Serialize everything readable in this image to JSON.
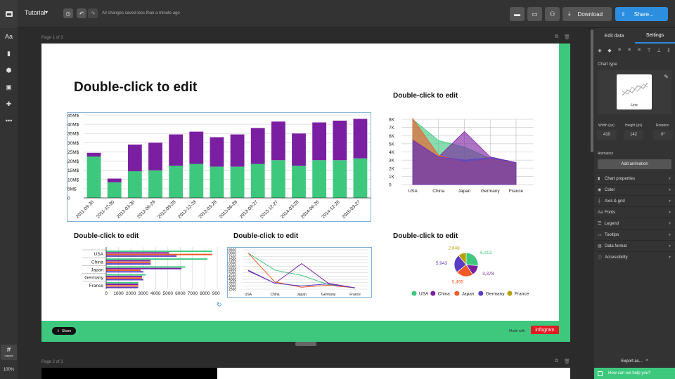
{
  "header": {
    "project_title": "Tutorial",
    "saved_status": "All changes saved less than a minute ago",
    "download_label": "Download",
    "share_label": "Share...",
    "share_color": "#2d8ee0"
  },
  "left_toolbar": {
    "items": [
      {
        "name": "text-tool-icon",
        "glyph": "Aa"
      },
      {
        "name": "chart-tool-icon",
        "glyph": "▮"
      },
      {
        "name": "map-tool-icon",
        "glyph": "⬢"
      },
      {
        "name": "image-tool-icon",
        "glyph": "▣"
      },
      {
        "name": "shapes-tool-icon",
        "glyph": "✚"
      },
      {
        "name": "more-tool-icon",
        "glyph": "•••"
      }
    ],
    "layout_label": "Layout",
    "zoom": "100%"
  },
  "canvas": {
    "page1_label": "Page 1 of 3",
    "page2_label": "Page 2 of 3",
    "main_title": "Double-click to edit",
    "area_title": "Double-click to edit",
    "hbar_title": "Double-click to edit",
    "line_title": "Double-click to edit",
    "pie_title": "Double-click to edit",
    "footer_share": "Share",
    "made_with": "Made with",
    "brand": "infogram",
    "accent_green": "#3ec87e"
  },
  "right_panel": {
    "tabs": [
      "Edit data",
      "Settings"
    ],
    "active_tab": "Settings",
    "chart_type_label": "Chart type",
    "chart_type_value": "Line",
    "width_label": "Width (px)",
    "width_value": "410",
    "height_label": "Height (px)",
    "height_value": "142",
    "rotation_label": "Rotation",
    "rotation_value": "0°",
    "animation_label": "Animation",
    "add_animation_label": "Add animation",
    "sections": [
      {
        "icon": "chart-properties-icon",
        "glyph": "▮",
        "label": "Chart properties"
      },
      {
        "icon": "color-icon",
        "glyph": "◉",
        "label": "Color"
      },
      {
        "icon": "axis-grid-icon",
        "glyph": "┼",
        "label": "Axis & grid"
      },
      {
        "icon": "fonts-icon",
        "glyph": "Aa",
        "label": "Fonts"
      },
      {
        "icon": "legend-icon",
        "glyph": "☰",
        "label": "Legend"
      },
      {
        "icon": "tooltips-icon",
        "glyph": "▭",
        "label": "Tooltips"
      },
      {
        "icon": "data-format-icon",
        "glyph": "▤",
        "label": "Data format"
      },
      {
        "icon": "accessibility-icon",
        "glyph": "ⓘ",
        "label": "Accessibility"
      }
    ],
    "export_label": "Export as...",
    "help_label": "How can we help you?"
  },
  "chart_data": [
    {
      "type": "bar",
      "title": "",
      "categories": [
        "2011-09-30",
        "2011-12-30",
        "2012-03-30",
        "2012-06-29",
        "2012-09-28",
        "2012-12-28",
        "2013-03-29",
        "2013-06-28",
        "2013-09-27",
        "2013-12-27",
        "2014-03-28",
        "2014-06-26",
        "2014-12-26",
        "2015-03-27"
      ],
      "series": [
        {
          "color": "#3ec87e",
          "values": [
            22.5,
            8.5,
            14.5,
            15,
            17.5,
            18.5,
            17,
            17,
            18.5,
            20.5,
            17.5,
            20.5,
            20.5,
            21.5
          ]
        },
        {
          "color": "#7b1fa2",
          "values": [
            2,
            2,
            14.5,
            15,
            17,
            17.5,
            16,
            17.5,
            19.5,
            21,
            17.5,
            20.5,
            21.5,
            21.5
          ]
        }
      ],
      "yticks": [
        "0",
        "5M$",
        "10M$",
        "15M$",
        "20M$",
        "25M$",
        "30M$",
        "35M$",
        "40M$",
        "45M$"
      ],
      "ylim": [
        0,
        45
      ]
    },
    {
      "type": "area",
      "title": "Double-click to edit",
      "categories": [
        "USA",
        "China",
        "Japan",
        "Germany",
        "France"
      ],
      "yticks": [
        "0",
        "1K",
        "2K",
        "3K",
        "4K",
        "5K",
        "6K",
        "7K",
        "8K"
      ],
      "ylim": [
        0,
        8000
      ],
      "series": [
        {
          "name": "USA",
          "color": "#3ec87e",
          "values": [
            8000,
            5400,
            4600,
            3200,
            2700
          ]
        },
        {
          "name": "China",
          "color": "#7b1fa2",
          "values": [
            5500,
            3400,
            6500,
            3400,
            2700
          ]
        },
        {
          "name": "Japan",
          "color": "#f05a28",
          "values": [
            8100,
            3600,
            2700,
            3100,
            2700
          ]
        },
        {
          "name": "Germany",
          "color": "#5b3cc4",
          "values": [
            5400,
            3400,
            3000,
            3300,
            2700
          ]
        }
      ]
    },
    {
      "type": "bar",
      "orientation": "horizontal",
      "title": "Double-click to edit",
      "categories": [
        "USA",
        "China",
        "Japan",
        "Germany",
        "France"
      ],
      "xticks": [
        "0",
        "1000",
        "2000",
        "3000",
        "4000",
        "5000",
        "6000",
        "7000",
        "8000",
        "9000"
      ],
      "xlim": [
        0,
        9000
      ],
      "series": [
        {
          "name": "USA",
          "color": "#3ec87e",
          "values": [
            8600,
            8200,
            6400,
            3200,
            2600
          ]
        },
        {
          "name": "China",
          "color": "#7b1fa2",
          "values": [
            5100,
            3600,
            6100,
            2900,
            2600
          ]
        },
        {
          "name": "Japan",
          "color": "#f05a28",
          "values": [
            8600,
            3600,
            2800,
            2900,
            2600
          ]
        },
        {
          "name": "Germany",
          "color": "#5b3cc4",
          "values": [
            5700,
            3600,
            3000,
            3000,
            2600
          ]
        }
      ]
    },
    {
      "type": "line",
      "title": "Double-click to edit",
      "categories": [
        "USA",
        "China",
        "Japan",
        "Germany",
        "France"
      ],
      "yticks": [
        "2500",
        "3000",
        "3500",
        "4000",
        "4500",
        "5000",
        "5500",
        "6000",
        "6500",
        "7000",
        "7500",
        "8000",
        "8500"
      ],
      "ylim": [
        2500,
        8500
      ],
      "series": [
        {
          "name": "USA",
          "color": "#3ec87e",
          "values": [
            8000,
            5400,
            4600,
            3200,
            2700
          ]
        },
        {
          "name": "China",
          "color": "#7b1fa2",
          "values": [
            5300,
            3400,
            6400,
            3400,
            2700
          ]
        },
        {
          "name": "Japan",
          "color": "#f05a28",
          "values": [
            8000,
            3600,
            2800,
            3100,
            2700
          ]
        },
        {
          "name": "Germany",
          "color": "#5b3cc4",
          "values": [
            5400,
            3400,
            3000,
            3300,
            2700
          ]
        }
      ]
    },
    {
      "type": "pie",
      "title": "Double-click to edit",
      "labels": [
        "USA",
        "China",
        "Japan",
        "Germany",
        "France"
      ],
      "values": [
        6313,
        3378,
        5495,
        5943,
        2648
      ],
      "value_labels": [
        "6,313",
        "3,378",
        "5,495",
        "5,943",
        "2,648"
      ],
      "colors": [
        "#3ec87e",
        "#7b1fa2",
        "#f05a28",
        "#5b3cc4",
        "#b5a000"
      ],
      "legend": "bottom"
    }
  ]
}
